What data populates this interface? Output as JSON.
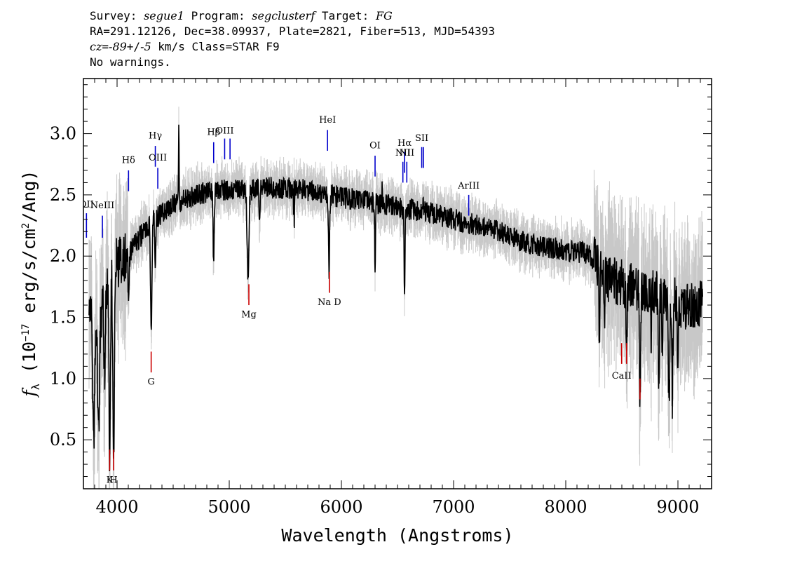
{
  "header": {
    "line1": {
      "survey_label": "Survey: ",
      "survey": "segue1",
      "program_label": " Program: ",
      "program": "segclusterf",
      "target_label": " Target: ",
      "target": "FG"
    },
    "line2": "RA=291.12126, Dec=38.09937, Plate=2821, Fiber=513, MJD=54393",
    "line3": {
      "cz_label": "cz",
      "cz_eq": "=",
      "cz_value": "-89",
      "pm": "+/",
      "cz_err": "-5",
      "rest": " km/s Class=STAR F9"
    },
    "line4": "No warnings."
  },
  "chart_data": {
    "type": "line",
    "xlabel": "Wavelength (Angstroms)",
    "ylabel": "f_λ (10^-17 erg/s/cm^2/Ang)",
    "ylabel_parts": {
      "f": "f",
      "sub": "λ",
      "a": " (10",
      "exp1": "−17",
      "b": " erg/s/cm",
      "exp2": "2",
      "c": "/Ang)"
    },
    "xlim": [
      3700,
      9300
    ],
    "ylim": [
      0.1,
      3.45
    ],
    "xticks": [
      4000,
      5000,
      6000,
      7000,
      8000,
      9000
    ],
    "yticks": [
      0.5,
      1.0,
      1.5,
      2.0,
      2.5,
      3.0
    ],
    "xtick_labels": [
      "4000",
      "5000",
      "6000",
      "7000",
      "8000",
      "9000"
    ],
    "ytick_labels": [
      "0.5",
      "1.0",
      "1.5",
      "2.0",
      "2.5",
      "3.0"
    ],
    "grid": false,
    "continuum": {
      "x": [
        3750,
        3800,
        3850,
        3900,
        3950,
        4000,
        4050,
        4100,
        4200,
        4300,
        4400,
        4500,
        4600,
        4700,
        4800,
        5000,
        5200,
        5400,
        5600,
        5800,
        6000,
        6200,
        6400,
        6600,
        6800,
        7000,
        7200,
        7400,
        7600,
        7800,
        8000,
        8200,
        8400,
        8600,
        8800,
        9000,
        9100,
        9220
      ],
      "y": [
        1.55,
        1.4,
        1.5,
        1.7,
        1.85,
        1.95,
        1.98,
        2.02,
        2.15,
        2.28,
        2.35,
        2.42,
        2.46,
        2.5,
        2.52,
        2.55,
        2.54,
        2.56,
        2.55,
        2.52,
        2.48,
        2.45,
        2.42,
        2.38,
        2.35,
        2.3,
        2.25,
        2.2,
        2.12,
        2.08,
        2.05,
        2.02,
        1.8,
        1.75,
        1.7,
        1.62,
        1.58,
        1.62
      ]
    },
    "absorption": [
      {
        "x": 3790,
        "depth": 1.0,
        "width": 8
      },
      {
        "x": 3835,
        "depth": 0.9,
        "width": 8
      },
      {
        "x": 3889,
        "depth": 0.6,
        "width": 6
      },
      {
        "x": 3934,
        "depth": 1.5,
        "width": 6
      },
      {
        "x": 3969,
        "depth": 1.5,
        "width": 7
      },
      {
        "x": 4102,
        "depth": 0.4,
        "width": 5
      },
      {
        "x": 4304,
        "depth": 0.9,
        "width": 6
      },
      {
        "x": 4341,
        "depth": 0.4,
        "width": 5
      },
      {
        "x": 4861,
        "depth": 0.6,
        "width": 5
      },
      {
        "x": 5167,
        "depth": 0.7,
        "width": 8
      },
      {
        "x": 5270,
        "depth": 0.3,
        "width": 4
      },
      {
        "x": 5577,
        "depth": 0.9,
        "width": 3
      },
      {
        "x": 5890,
        "depth": 0.6,
        "width": 5
      },
      {
        "x": 6300,
        "depth": 0.7,
        "width": 3
      },
      {
        "x": 6563,
        "depth": 0.7,
        "width": 4
      },
      {
        "x": 8300,
        "depth": 0.5,
        "width": 5
      },
      {
        "x": 8345,
        "depth": 0.4,
        "width": 5
      },
      {
        "x": 8542,
        "depth": 0.6,
        "width": 5
      },
      {
        "x": 8662,
        "depth": 0.9,
        "width": 5
      },
      {
        "x": 8760,
        "depth": 0.4,
        "width": 4
      },
      {
        "x": 8830,
        "depth": 0.8,
        "width": 5
      },
      {
        "x": 8860,
        "depth": 0.6,
        "width": 4
      },
      {
        "x": 8920,
        "depth": 0.9,
        "width": 6
      },
      {
        "x": 8950,
        "depth": 0.8,
        "width": 5
      },
      {
        "x": 9000,
        "depth": 0.5,
        "width": 5
      }
    ],
    "emission": [
      {
        "x": 4550,
        "height": 0.55,
        "width": 3
      },
      {
        "x": 5577,
        "height": 0.95,
        "width": 2
      },
      {
        "x": 6300,
        "height": 0.15,
        "width": 2
      },
      {
        "x": 6363,
        "height": 0.1,
        "width": 2
      },
      {
        "x": 6730,
        "height": 0.1,
        "width": 2
      }
    ],
    "emission_lines": [
      {
        "label": "OII",
        "x": 3727,
        "y0": 2.15,
        "y1": 2.35,
        "label_y": 2.4,
        "color": "#0000cc"
      },
      {
        "label": "NeIII",
        "x": 3869,
        "y0": 2.15,
        "y1": 2.33,
        "label_y": 2.39,
        "color": "#0000cc"
      },
      {
        "label": "Hδ",
        "x": 4102,
        "y0": 2.53,
        "y1": 2.7,
        "label_y": 2.76,
        "color": "#0000cc"
      },
      {
        "label": "Hγ",
        "x": 4341,
        "y0": 2.73,
        "y1": 2.9,
        "label_y": 2.96,
        "color": "#0000cc"
      },
      {
        "label": "OIII",
        "x": 4363,
        "y0": 2.55,
        "y1": 2.72,
        "label_y": 2.78,
        "color": "#0000cc"
      },
      {
        "label": "Hβ",
        "x": 4861,
        "y0": 2.76,
        "y1": 2.93,
        "label_y": 2.99,
        "color": "#0000cc"
      },
      {
        "label": "OIII",
        "x": 4959,
        "y0": 2.79,
        "y1": 2.96,
        "label_y": 3.0,
        "color": "#0000cc"
      },
      {
        "label": "",
        "x": 5007,
        "y0": 2.79,
        "y1": 2.96,
        "label_y": 3.0,
        "color": "#0000cc"
      },
      {
        "label": "HeI",
        "x": 5876,
        "y0": 2.86,
        "y1": 3.03,
        "label_y": 3.09,
        "color": "#0000cc"
      },
      {
        "label": "OI",
        "x": 6300,
        "y0": 2.65,
        "y1": 2.82,
        "label_y": 2.88,
        "color": "#0000cc"
      },
      {
        "label": "NII",
        "x": 6548,
        "y0": 2.6,
        "y1": 2.77,
        "label_y": 2.82,
        "color": "#0000cc"
      },
      {
        "label": "Hα",
        "x": 6563,
        "y0": 2.68,
        "y1": 2.85,
        "label_y": 2.9,
        "color": "#0000cc"
      },
      {
        "label": "NII",
        "x": 6583,
        "y0": 2.6,
        "y1": 2.77,
        "label_y": 2.82,
        "color": "#0000cc"
      },
      {
        "label": "SII",
        "x": 6716,
        "y0": 2.72,
        "y1": 2.89,
        "label_y": 2.94,
        "color": "#0000cc"
      },
      {
        "label": "",
        "x": 6731,
        "y0": 2.72,
        "y1": 2.89,
        "label_y": 2.94,
        "color": "#0000cc"
      },
      {
        "label": "ArIII",
        "x": 7135,
        "y0": 2.33,
        "y1": 2.5,
        "label_y": 2.55,
        "color": "#0000cc"
      }
    ],
    "absorption_lines": [
      {
        "label": "K",
        "x": 3934,
        "y0": 0.25,
        "y1": 0.42,
        "label_y": 0.15,
        "color": "#cc0000"
      },
      {
        "label": "H",
        "x": 3969,
        "y0": 0.25,
        "y1": 0.42,
        "label_y": 0.15,
        "color": "#cc0000"
      },
      {
        "label": "G",
        "x": 4304,
        "y0": 1.05,
        "y1": 1.22,
        "label_y": 0.95,
        "color": "#cc0000"
      },
      {
        "label": "Mg",
        "x": 5175,
        "y0": 1.6,
        "y1": 1.77,
        "label_y": 1.5,
        "color": "#cc0000"
      },
      {
        "label": "Na D",
        "x": 5893,
        "y0": 1.7,
        "y1": 1.87,
        "label_y": 1.6,
        "color": "#cc0000"
      },
      {
        "label": "CaII",
        "x": 8498,
        "y0": 1.12,
        "y1": 1.29,
        "label_y": 1.0,
        "color": "#cc0000"
      },
      {
        "label": "",
        "x": 8542,
        "y0": 1.12,
        "y1": 1.29,
        "label_y": 1.0,
        "color": "#cc0000"
      },
      {
        "label": "",
        "x": 8662,
        "y0": 0.83,
        "y1": 1.0,
        "label_y": 0.73,
        "color": "#cc0000"
      }
    ],
    "series_colors": {
      "spectrum": "#000000",
      "error": "#c8c8c8"
    }
  }
}
